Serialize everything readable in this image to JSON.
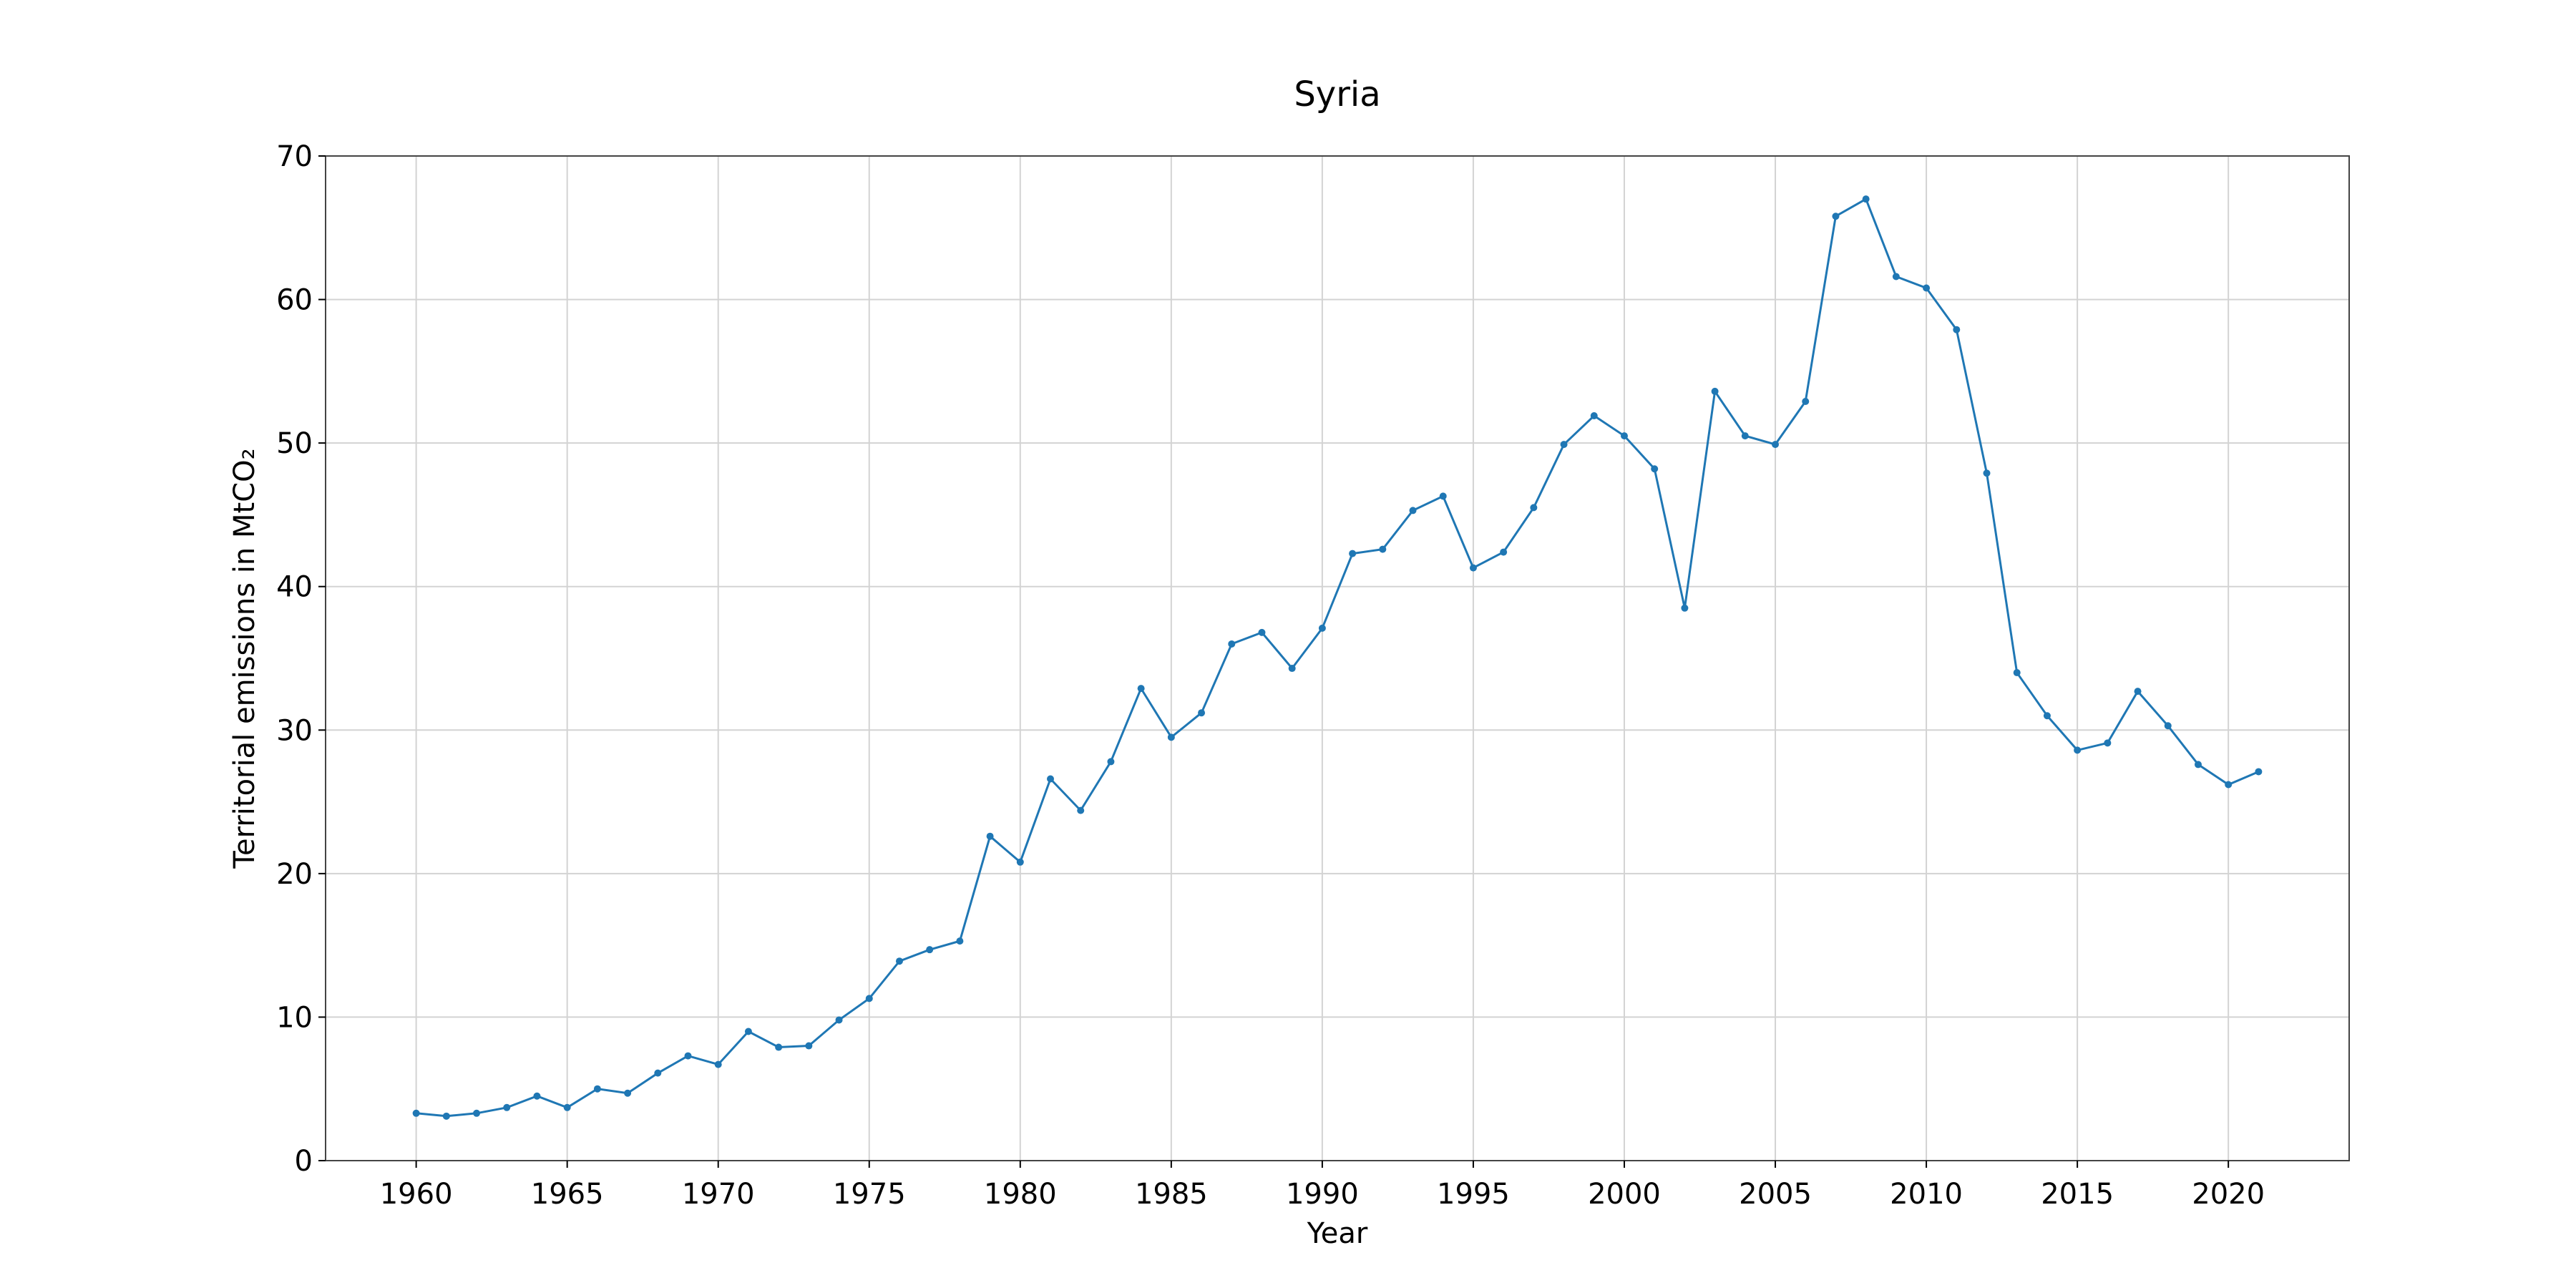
{
  "chart_data": {
    "type": "line",
    "title": "Syria",
    "xlabel": "Year",
    "ylabel": "Territorial emissions in MtCO₂",
    "xlim": [
      1957,
      2024
    ],
    "ylim": [
      0,
      70
    ],
    "xticks": [
      1960,
      1965,
      1970,
      1975,
      1980,
      1985,
      1990,
      1995,
      2000,
      2005,
      2010,
      2015,
      2020
    ],
    "yticks": [
      0,
      10,
      20,
      30,
      40,
      50,
      60,
      70
    ],
    "grid": true,
    "series": [
      {
        "color": "#1f77b4",
        "marker": "circle",
        "x": [
          1960,
          1961,
          1962,
          1963,
          1964,
          1965,
          1966,
          1967,
          1968,
          1969,
          1970,
          1971,
          1972,
          1973,
          1974,
          1975,
          1976,
          1977,
          1978,
          1979,
          1980,
          1981,
          1982,
          1983,
          1984,
          1985,
          1986,
          1987,
          1988,
          1989,
          1990,
          1991,
          1992,
          1993,
          1994,
          1995,
          1996,
          1997,
          1998,
          1999,
          2000,
          2001,
          2002,
          2003,
          2004,
          2005,
          2006,
          2007,
          2008,
          2009,
          2010,
          2011,
          2012,
          2013,
          2014,
          2015,
          2016,
          2017,
          2018,
          2019,
          2020,
          2021
        ],
        "y": [
          3.3,
          3.1,
          3.3,
          3.7,
          4.5,
          3.7,
          5.0,
          4.7,
          6.1,
          7.3,
          6.7,
          9.0,
          7.9,
          8.0,
          9.8,
          11.3,
          13.9,
          14.7,
          15.3,
          22.6,
          20.8,
          26.6,
          24.4,
          27.8,
          32.9,
          29.5,
          31.2,
          36.0,
          36.8,
          34.3,
          37.1,
          42.3,
          42.6,
          45.3,
          46.3,
          41.3,
          42.4,
          45.5,
          49.9,
          51.9,
          50.5,
          48.2,
          38.5,
          53.6,
          50.5,
          49.9,
          52.9,
          65.8,
          67.0,
          61.6,
          60.8,
          57.9,
          47.9,
          34.0,
          31.0,
          28.6,
          29.1,
          32.7,
          30.3,
          27.6,
          26.2,
          27.1
        ]
      }
    ]
  }
}
